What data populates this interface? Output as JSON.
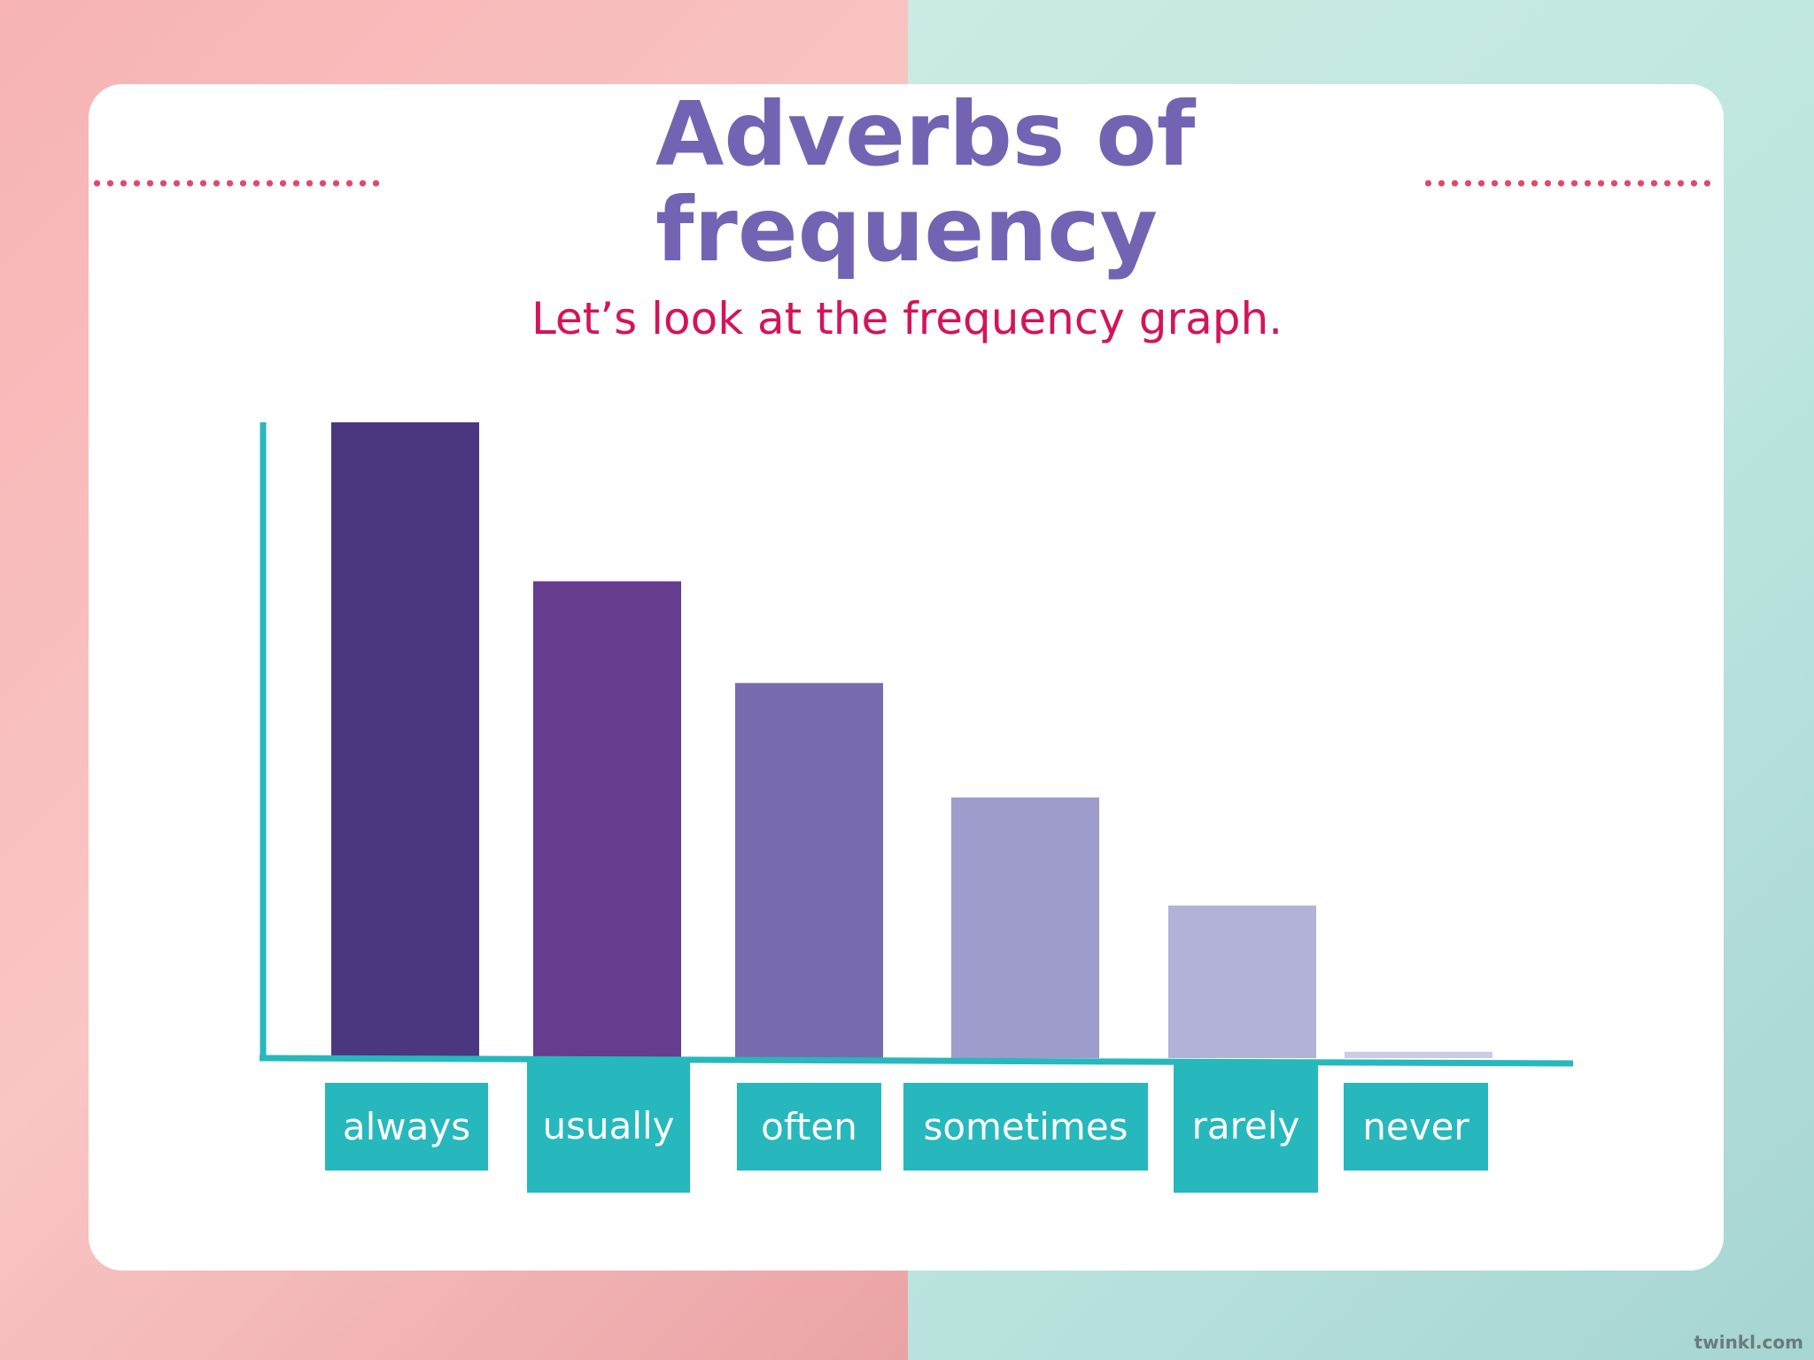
{
  "slide": {
    "title": "Adverbs of frequency",
    "subtitle": "Let’s look at the frequency graph.",
    "brand": "twinkl.com"
  },
  "colors": {
    "title": "#7364b3",
    "subtitle": "#d3145a",
    "axis": "#26b8bc",
    "label_bg": "#26b8bc",
    "dots": "#de4a6a"
  },
  "chart_data": {
    "type": "bar",
    "title": "",
    "xlabel": "",
    "ylabel": "",
    "categories": [
      "always",
      "usually",
      "often",
      "sometimes",
      "rarely",
      "never"
    ],
    "values": [
      100,
      75,
      59,
      41,
      24,
      1
    ],
    "ylim": [
      0,
      100
    ],
    "grid": false,
    "bar_colors": [
      "#4a377f",
      "#663c8f",
      "#786bae",
      "#9e9ccc",
      "#b2b2d8",
      "#cccce6"
    ]
  }
}
